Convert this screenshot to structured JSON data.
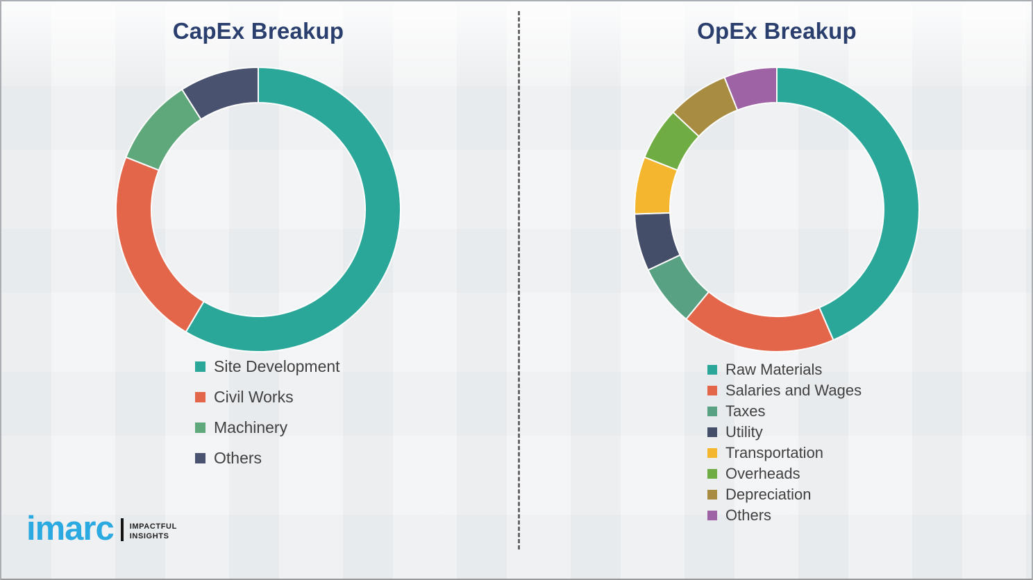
{
  "slide": {
    "background_color": "#F1F2F3",
    "border_color": "#AAADB1",
    "title_color": "#2A3F6E",
    "legend_text_color": "#404040"
  },
  "divider": {
    "type": "vertical-dashed-line",
    "color": "#4F4F4F"
  },
  "logo": {
    "wordmark": "imarc",
    "wordmark_color": "#2BA9E1",
    "bar_color": "#141414",
    "tagline_line1": "IMPACTFUL",
    "tagline_line2": "INSIGHTS"
  },
  "chart_data": [
    {
      "type": "pie",
      "variant": "donut",
      "title": "CapEx Breakup",
      "labels": [
        "Site Development",
        "Civil Works",
        "Machinery",
        "Others"
      ],
      "values_pct": [
        58.5,
        22.5,
        10,
        9
      ],
      "colors": [
        "#2BA79A",
        "#E3664A",
        "#5FA87B",
        "#49526E"
      ],
      "start_angle_deg": 0,
      "direction": "clockwise",
      "inner_radius_ratio": 0.75,
      "segment_gap_color": "#FFFFFF",
      "legend_position": "below-left",
      "data_labels_shown": false
    },
    {
      "type": "pie",
      "variant": "donut",
      "title": "OpEx Breakup",
      "labels": [
        "Raw Materials",
        "Salaries and Wages",
        "Taxes",
        "Utility",
        "Transportation",
        "Overheads",
        "Depreciation",
        "Others"
      ],
      "values_pct": [
        43.5,
        17.5,
        7,
        6.5,
        6.5,
        6,
        7,
        6
      ],
      "colors": [
        "#2BA79A",
        "#E3664A",
        "#58A183",
        "#454E68",
        "#F4B62F",
        "#6FAC43",
        "#A78C42",
        "#9D63A5"
      ],
      "start_angle_deg": 0,
      "direction": "clockwise",
      "inner_radius_ratio": 0.75,
      "segment_gap_color": "#FFFFFF",
      "legend_position": "below-left",
      "data_labels_shown": false
    }
  ]
}
